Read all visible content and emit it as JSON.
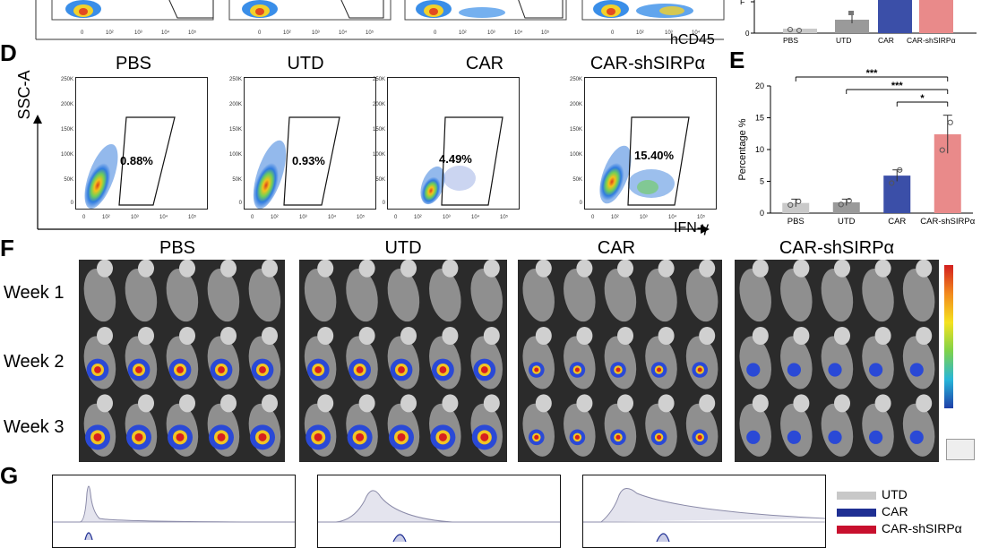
{
  "panels": {
    "D": "D",
    "E": "E",
    "F": "F",
    "G": "G"
  },
  "top_strip": {
    "x_axis_label": "hCD45",
    "ticks": [
      "0",
      "10²",
      "10³",
      "10⁴",
      "10⁵"
    ]
  },
  "top_bar": {
    "categories": [
      "PBS",
      "UTD",
      "CAR",
      "CAR-shSIRPα"
    ]
  },
  "panel_d": {
    "y_axis_label": "SSC-A",
    "x_axis_label": "IFN-γ",
    "y_ticks": [
      "250K",
      "200K",
      "150K",
      "100K",
      "50K",
      "0"
    ],
    "x_ticks": [
      "0",
      "10²",
      "10³",
      "10⁴",
      "10⁵"
    ],
    "plots": [
      {
        "title": "PBS",
        "gate": "0.88%"
      },
      {
        "title": "UTD",
        "gate": "0.93%"
      },
      {
        "title": "CAR",
        "gate": "4.49%"
      },
      {
        "title": "CAR-shSIRPα",
        "gate": "15.40%"
      }
    ]
  },
  "chart_data": {
    "type": "bar",
    "categories": [
      "PBS",
      "UTD",
      "CAR",
      "CAR-shSIRPα"
    ],
    "values": [
      1.6,
      1.7,
      5.9,
      12.4
    ],
    "errors": [
      0.6,
      0.5,
      0.9,
      3.0
    ],
    "ylabel": "Percentage %",
    "ylim": [
      0,
      20
    ],
    "yticks": [
      "0",
      "5",
      "10",
      "15",
      "20"
    ],
    "colors": [
      "#c9c9c9",
      "#9a9a9a",
      "#3b4fa8",
      "#e98a8a"
    ],
    "significance": [
      {
        "pair": [
          "PBS",
          "CAR-shSIRPα"
        ],
        "label": "***"
      },
      {
        "pair": [
          "UTD",
          "CAR-shSIRPα"
        ],
        "label": "***"
      },
      {
        "pair": [
          "CAR",
          "CAR-shSIRPα"
        ],
        "label": "*"
      }
    ]
  },
  "panel_f": {
    "groups": [
      "PBS",
      "UTD",
      "CAR",
      "CAR-shSIRPα"
    ],
    "rows": [
      "Week 1",
      "Week 2",
      "Week 3"
    ]
  },
  "panel_g": {
    "legend": [
      {
        "label": "UTD",
        "color": "#c8c8c8"
      },
      {
        "label": "CAR",
        "color": "#1f2f93"
      },
      {
        "label": "CAR-shSIRPα",
        "color": "#c8102e"
      }
    ]
  }
}
